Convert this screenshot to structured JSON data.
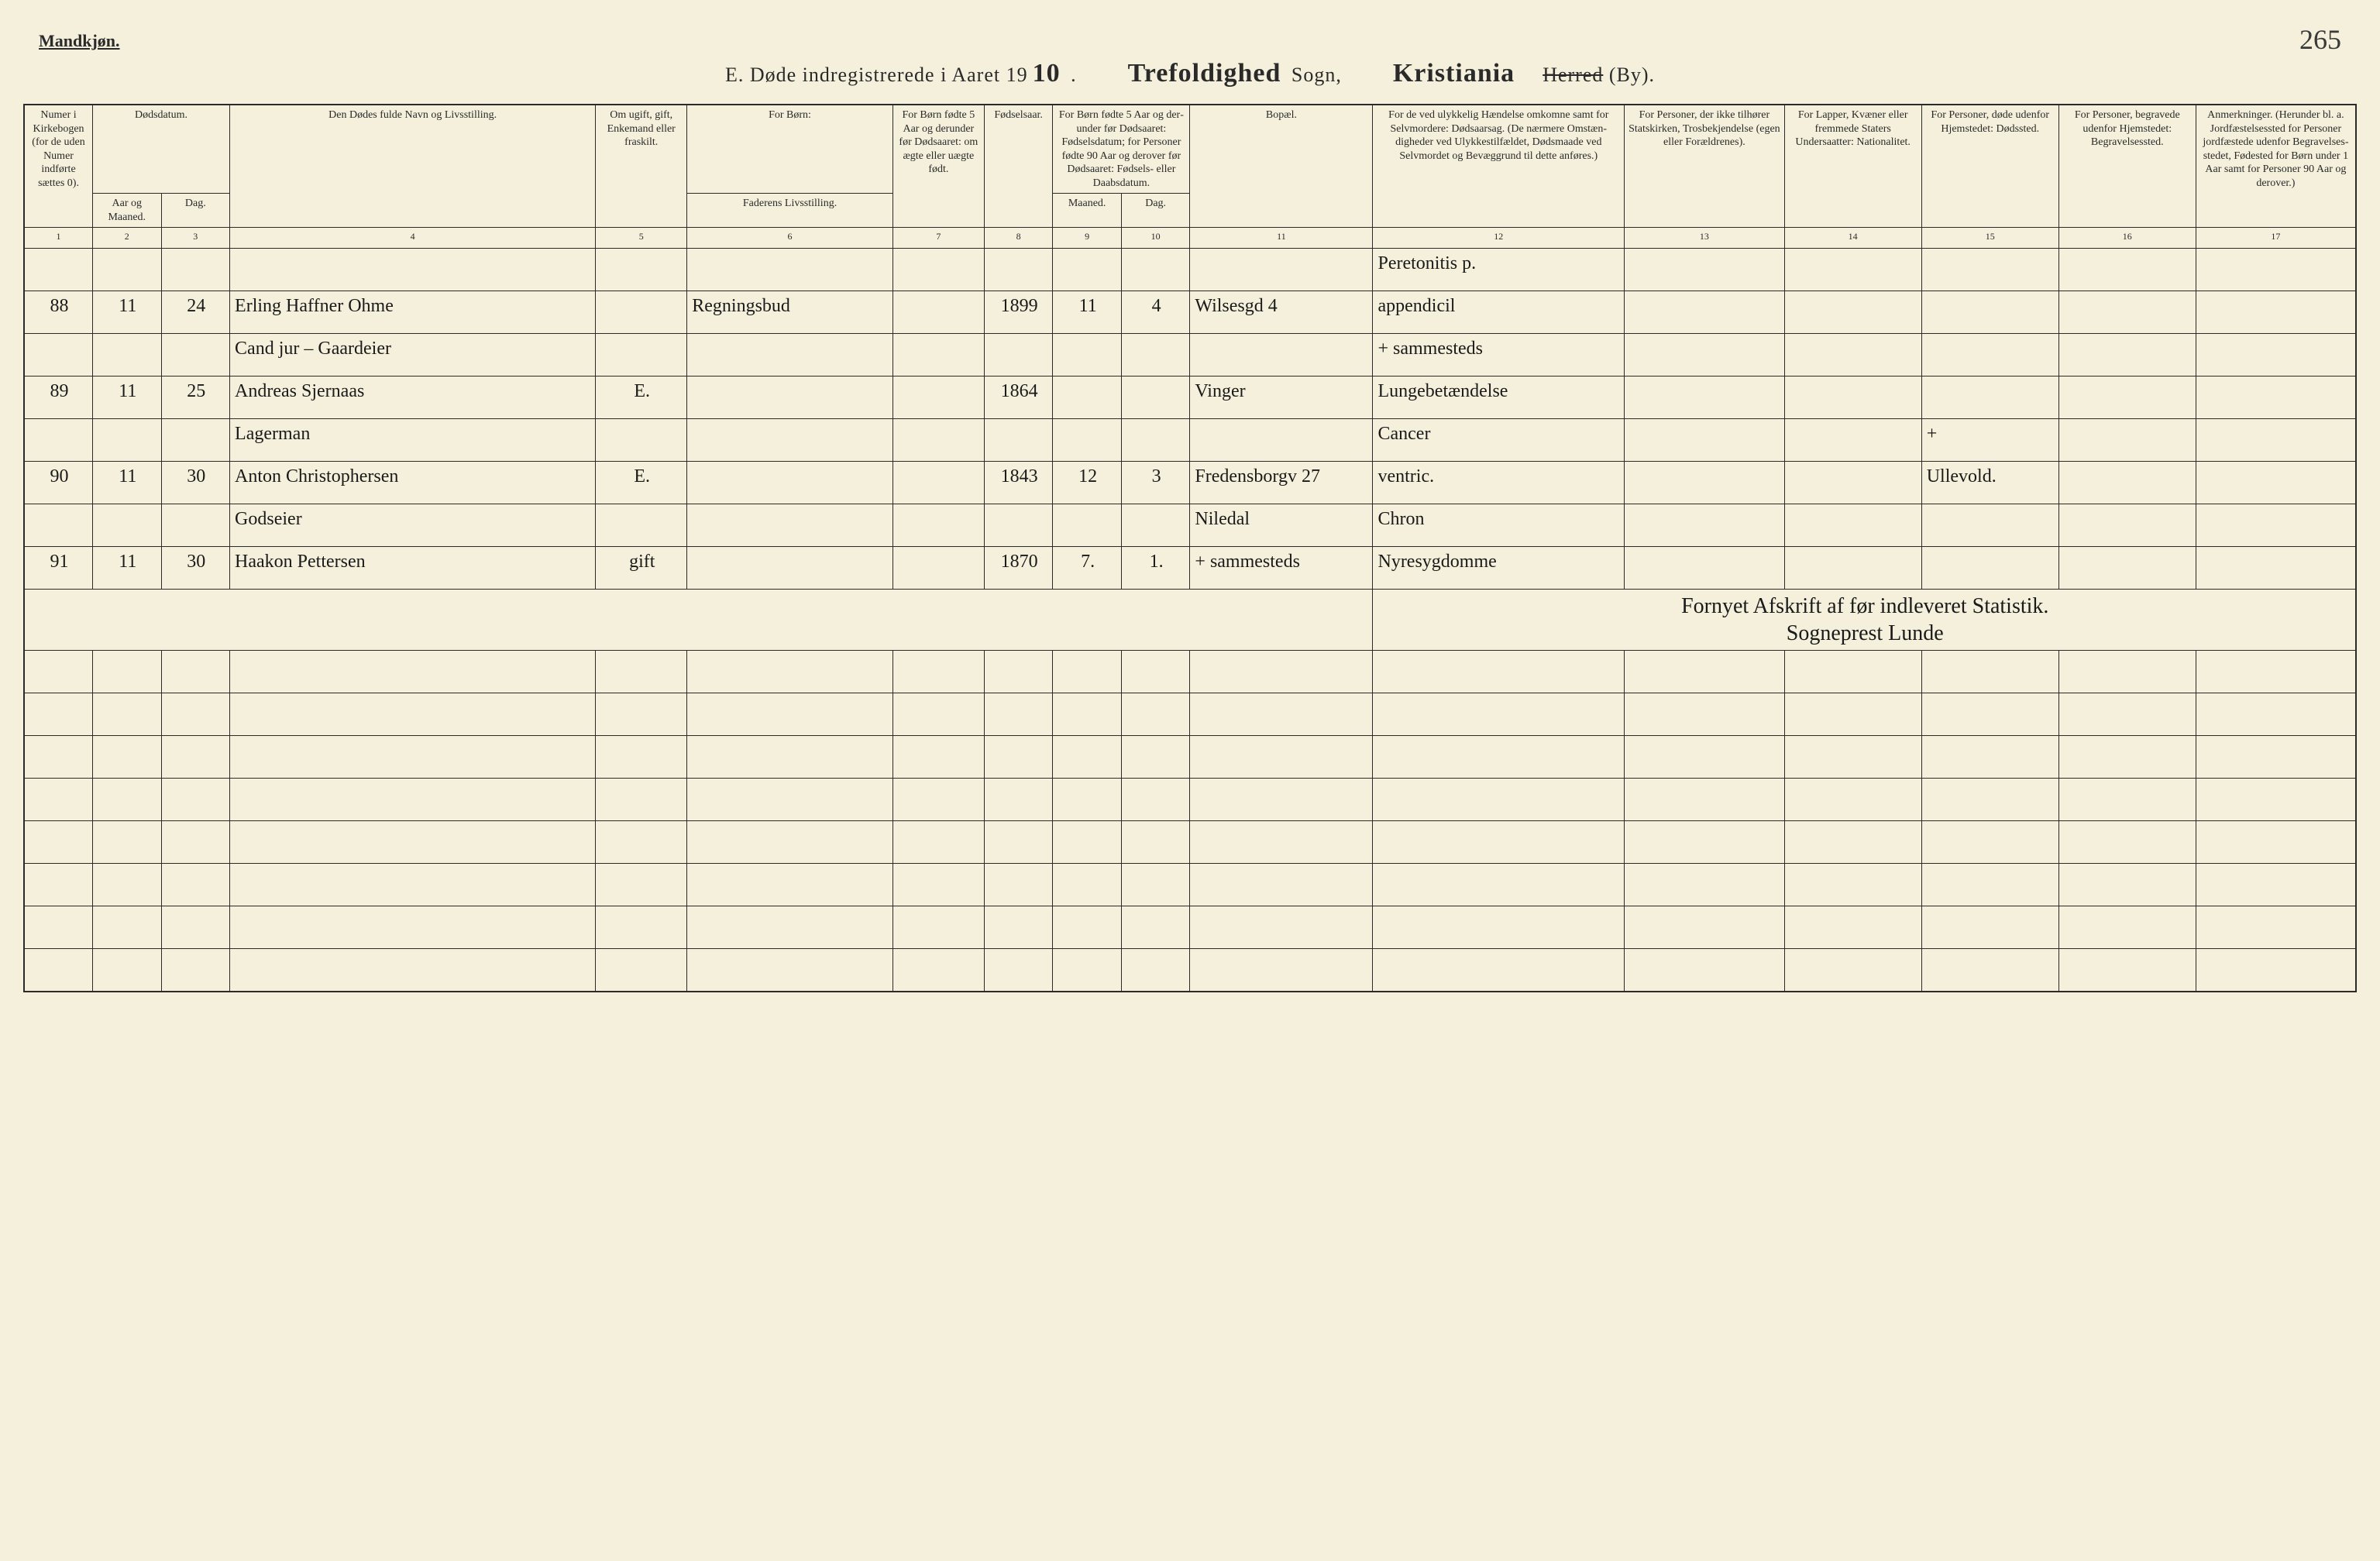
{
  "header": {
    "gender_label": "Mandkjøn.",
    "page_number_corner": "265",
    "title_prefix": "E.   Døde indregistrerede i Aaret 19",
    "year_suffix": "10",
    "title_dot": " .",
    "sogn_fill": "Trefoldighed",
    "sogn_label": " Sogn,",
    "city_fill": "Kristiania",
    "herred_struck": "Herred",
    "by_label": " (By)."
  },
  "columns": {
    "c1": "Numer i Kirke­bogen (for de uden Numer indførte sættes 0).",
    "c2_group": "Dødsdatum.",
    "c2": "Aar og Maaned.",
    "c3": "Dag.",
    "c4": "Den Dødes fulde Navn og Livsstilling.",
    "c5": "Om ugift, gift, Enke­mand eller fraskilt.",
    "c6_group": "For Børn:",
    "c6": "Faderens Livsstilling.",
    "c7": "For Børn fødte 5 Aar og derunder før Døds­aaret: om ægte eller uægte født.",
    "c8": "Fødsels­aar.",
    "c9_10_group": "For Børn fødte 5 Aar og der­under før Dødsaaret: Fødselsdatum; for Personer fødte 90 Aar og derover før Dødsaaret: Fødsels- eller Daabsdatum.",
    "c9": "Maaned.",
    "c10": "Dag.",
    "c11": "Bopæl.",
    "c12": "For de ved ulykkelig Hændelse omkomne samt for Selvmordere: Dødsaarsag. (De nærmere Omstæn­digheder ved Ulykkes­tilfældet, Dødsmaade ved Selvmordet og Bevæggrund til dette anføres.)",
    "c13": "For Personer, der ikke tilhører Statskirken, Trosbekjendelse (egen eller Forældrenes).",
    "c14": "For Lapper, Kvæner eller fremmede Staters Undersaatter: Nationalitet.",
    "c15": "For Personer, døde udenfor Hjemstedet: Dødssted.",
    "c16": "For Personer, begravede udenfor Hjemstedet: Begravelsessted.",
    "c17": "Anmerkninger. (Herunder bl. a. Jordfæstelsessted for Personer jordfæstede udenfor Begravelses­stedet, Fødested for Børn under 1 Aar samt for Personer 90 Aar og derover.)"
  },
  "colnums": [
    "1",
    "2",
    "3",
    "4",
    "5",
    "6",
    "7",
    "8",
    "9",
    "10",
    "11",
    "12",
    "13",
    "14",
    "15",
    "16",
    "17"
  ],
  "rows": [
    {
      "num": "",
      "mon": "",
      "day": "",
      "name": "",
      "marit": "",
      "father": "",
      "legit": "",
      "byr": "",
      "bmon": "",
      "bday": "",
      "res": "",
      "cause": "Peretonitis p.",
      "rel": "",
      "nat": "",
      "dplace": "",
      "bplace": "",
      "rem": ""
    },
    {
      "num": "88",
      "mon": "11",
      "day": "24",
      "name": "Erling Haffner Ohme",
      "marit": "",
      "father": "Regningsbud",
      "legit": "",
      "byr": "1899",
      "bmon": "11",
      "bday": "4",
      "res": "Wilsesgd 4",
      "cause": "appendicil",
      "rel": "",
      "nat": "",
      "dplace": "",
      "bplace": "",
      "rem": ""
    },
    {
      "num": "",
      "mon": "",
      "day": "",
      "name": "Cand jur – Gaardeier",
      "marit": "",
      "father": "",
      "legit": "",
      "byr": "",
      "bmon": "",
      "bday": "",
      "res": "",
      "cause": "+ sammesteds",
      "rel": "",
      "nat": "",
      "dplace": "",
      "bplace": "",
      "rem": ""
    },
    {
      "num": "89",
      "mon": "11",
      "day": "25",
      "name": "Andreas Sjernaas",
      "marit": "E.",
      "father": "",
      "legit": "",
      "byr": "1864",
      "bmon": "",
      "bday": "",
      "res": "Vinger",
      "cause": "Lungebetændelse",
      "rel": "",
      "nat": "",
      "dplace": "",
      "bplace": "",
      "rem": ""
    },
    {
      "num": "",
      "mon": "",
      "day": "",
      "name": "Lagerman",
      "marit": "",
      "father": "",
      "legit": "",
      "byr": "",
      "bmon": "",
      "bday": "",
      "res": "",
      "cause": "Cancer",
      "rel": "",
      "nat": "",
      "dplace": "+",
      "bplace": "",
      "rem": ""
    },
    {
      "num": "90",
      "mon": "11",
      "day": "30",
      "name": "Anton Christophersen",
      "marit": "E.",
      "father": "",
      "legit": "",
      "byr": "1843",
      "bmon": "12",
      "bday": "3",
      "res": "Fredensborgv 27",
      "cause": "ventric.",
      "rel": "",
      "nat": "",
      "dplace": "Ullevold.",
      "bplace": "",
      "rem": ""
    },
    {
      "num": "",
      "mon": "",
      "day": "",
      "name": "Godseier",
      "marit": "",
      "father": "",
      "legit": "",
      "byr": "",
      "bmon": "",
      "bday": "",
      "res": "Niledal",
      "cause": "Chron",
      "rel": "",
      "nat": "",
      "dplace": "",
      "bplace": "",
      "rem": ""
    },
    {
      "num": "91",
      "mon": "11",
      "day": "30",
      "name": "Haakon Pettersen",
      "marit": "gift",
      "father": "",
      "legit": "",
      "byr": "1870",
      "bmon": "7.",
      "bday": "1.",
      "res": "+ sammesteds",
      "cause": "Nyresygdomme",
      "rel": "",
      "nat": "",
      "dplace": "",
      "bplace": "",
      "rem": ""
    }
  ],
  "signature": {
    "line1": "Fornyet Afskrift af før indleveret Statistik.",
    "line2": "Sogneprest Lunde"
  },
  "empty_row_count": 8,
  "styling": {
    "background_color": "#f4f0db",
    "border_color": "#2a2a2a",
    "print_font": "Times New Roman",
    "script_font": "Brush Script MT",
    "header_fontsize_pt": 14,
    "title_fontsize_pt": 26,
    "script_fontsize_pt": 24
  }
}
